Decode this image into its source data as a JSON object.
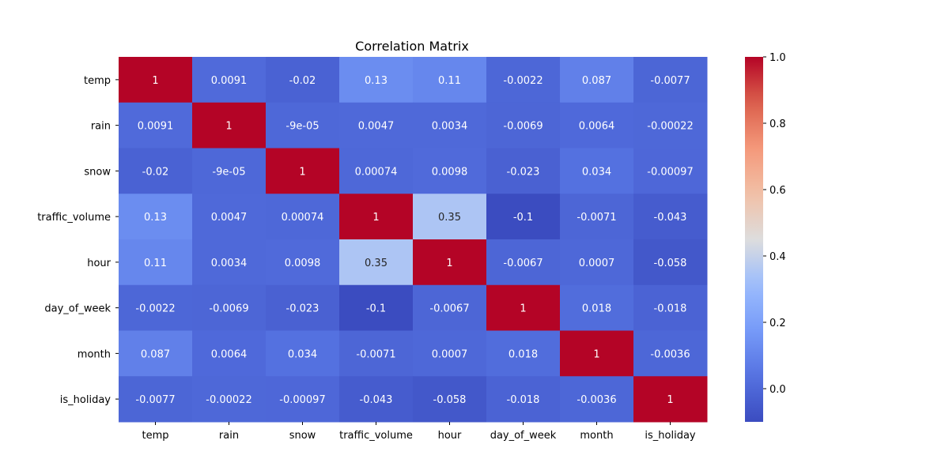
{
  "chart_data": {
    "type": "heatmap",
    "title": "Correlation Matrix",
    "xlabel": "",
    "ylabel": "",
    "colormap": "coolwarm",
    "vmin": -0.1,
    "vmax": 1.0,
    "rows": [
      "temp",
      "rain",
      "snow",
      "traffic_volume",
      "hour",
      "day_of_week",
      "month",
      "is_holiday"
    ],
    "columns": [
      "temp",
      "rain",
      "snow",
      "traffic_volume",
      "hour",
      "day_of_week",
      "month",
      "is_holiday"
    ],
    "values": [
      [
        1,
        0.0091,
        -0.02,
        0.13,
        0.11,
        -0.0022,
        0.087,
        -0.0077
      ],
      [
        0.0091,
        1,
        -9e-05,
        0.0047,
        0.0034,
        -0.0069,
        0.0064,
        -0.00022
      ],
      [
        -0.02,
        -9e-05,
        1,
        0.00074,
        0.0098,
        -0.023,
        0.034,
        -0.00097
      ],
      [
        0.13,
        0.0047,
        0.00074,
        1,
        0.35,
        -0.1,
        -0.0071,
        -0.043
      ],
      [
        0.11,
        0.0034,
        0.0098,
        0.35,
        1,
        -0.0067,
        0.0007,
        -0.058
      ],
      [
        -0.0022,
        -0.0069,
        -0.023,
        -0.1,
        -0.0067,
        1,
        0.018,
        -0.018
      ],
      [
        0.087,
        0.0064,
        0.034,
        -0.0071,
        0.0007,
        0.018,
        1,
        -0.0036
      ],
      [
        -0.0077,
        -0.00022,
        -0.00097,
        -0.043,
        -0.058,
        -0.018,
        -0.0036,
        1
      ]
    ],
    "annotations": [
      [
        "1",
        "0.0091",
        "-0.02",
        "0.13",
        "0.11",
        "-0.0022",
        "0.087",
        "-0.0077"
      ],
      [
        "0.0091",
        "1",
        "-9e-05",
        "0.0047",
        "0.0034",
        "-0.0069",
        "0.0064",
        "-0.00022"
      ],
      [
        "-0.02",
        "-9e-05",
        "1",
        "0.00074",
        "0.0098",
        "-0.023",
        "0.034",
        "-0.00097"
      ],
      [
        "0.13",
        "0.0047",
        "0.00074",
        "1",
        "0.35",
        "-0.1",
        "-0.0071",
        "-0.043"
      ],
      [
        "0.11",
        "0.0034",
        "0.0098",
        "0.35",
        "1",
        "-0.0067",
        "0.0007",
        "-0.058"
      ],
      [
        "-0.0022",
        "-0.0069",
        "-0.023",
        "-0.1",
        "-0.0067",
        "1",
        "0.018",
        "-0.018"
      ],
      [
        "0.087",
        "0.0064",
        "0.034",
        "-0.0071",
        "0.0007",
        "0.018",
        "1",
        "-0.0036"
      ],
      [
        "-0.0077",
        "-0.00022",
        "-0.00097",
        "-0.043",
        "-0.058",
        "-0.018",
        "-0.0036",
        "1"
      ]
    ],
    "colorbar_ticks": [
      0.0,
      0.2,
      0.4,
      0.6,
      0.8,
      1.0
    ],
    "colorbar_tick_labels": [
      "0.0",
      "0.2",
      "0.4",
      "0.6",
      "0.8",
      "1.0"
    ]
  }
}
